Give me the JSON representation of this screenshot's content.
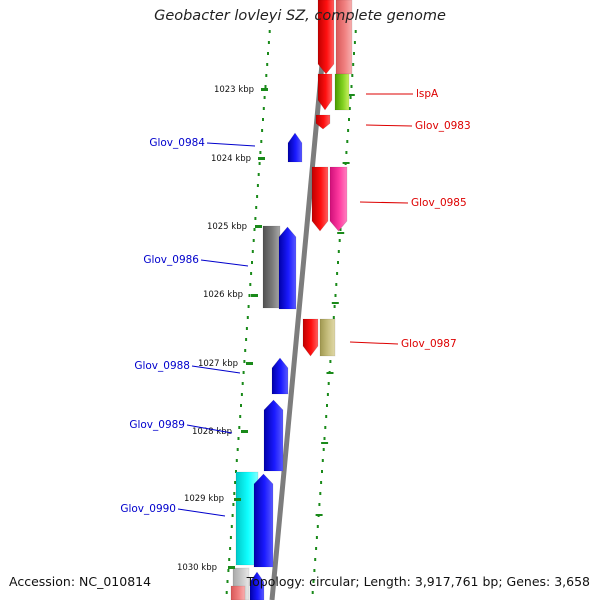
{
  "title": "Geobacter lovleyi SZ, complete genome",
  "accession": "Accession: NC_010814",
  "topology": "Topology: circular; Length: 3,917,761 bp; Genes: 3,658",
  "colors": {
    "forward_strand": "#0000ff",
    "reverse_strand": "#ff0000",
    "backbone": "#888888",
    "ticks": "#1a8a1a"
  },
  "ruler": [
    {
      "label": "1023 kbp"
    },
    {
      "label": "1024 kbp"
    },
    {
      "label": "1025 kbp"
    },
    {
      "label": "1026 kbp"
    },
    {
      "label": "1027 kbp"
    },
    {
      "label": "1028 kbp"
    },
    {
      "label": "1029 kbp"
    },
    {
      "label": "1030 kbp"
    }
  ],
  "gene_labels_left": [
    {
      "name": "Glov_0984",
      "color": "#0000cc"
    },
    {
      "name": "Glov_0986",
      "color": "#0000cc"
    },
    {
      "name": "Glov_0988",
      "color": "#0000cc"
    },
    {
      "name": "Glov_0989",
      "color": "#0000cc"
    },
    {
      "name": "Glov_0990",
      "color": "#0000cc"
    }
  ],
  "gene_labels_right": [
    {
      "name": "lspA",
      "color": "#dd0000"
    },
    {
      "name": "Glov_0983",
      "color": "#dd0000"
    },
    {
      "name": "Glov_0985",
      "color": "#dd0000"
    },
    {
      "name": "Glov_0987",
      "color": "#dd0000"
    }
  ]
}
